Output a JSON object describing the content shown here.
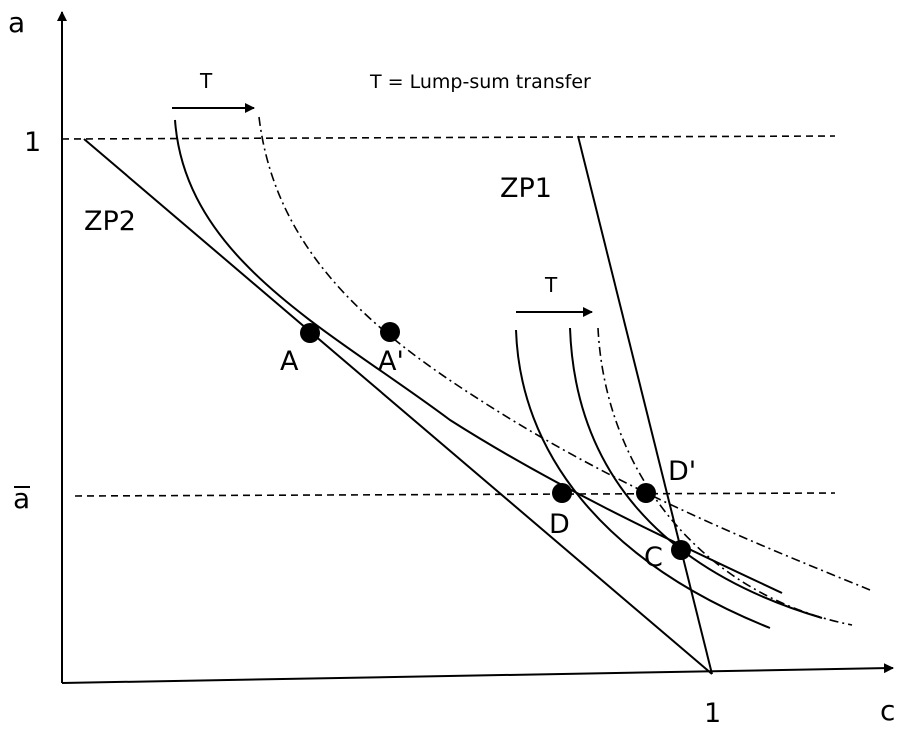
{
  "axes": {
    "y_label": "a",
    "x_label": "c",
    "y_tick_one": "1",
    "y_tick_abar": "a",
    "x_tick_one": "1"
  },
  "annotations": {
    "transfer_arrow_top": "T",
    "transfer_arrow_mid": "T",
    "legend_note": "T = Lump-sum transfer"
  },
  "lines": {
    "zp1": "ZP1",
    "zp2": "ZP2"
  },
  "points": {
    "a": "A",
    "a_prime": "A'",
    "c": "C",
    "d": "D",
    "d_prime": "D'"
  }
}
